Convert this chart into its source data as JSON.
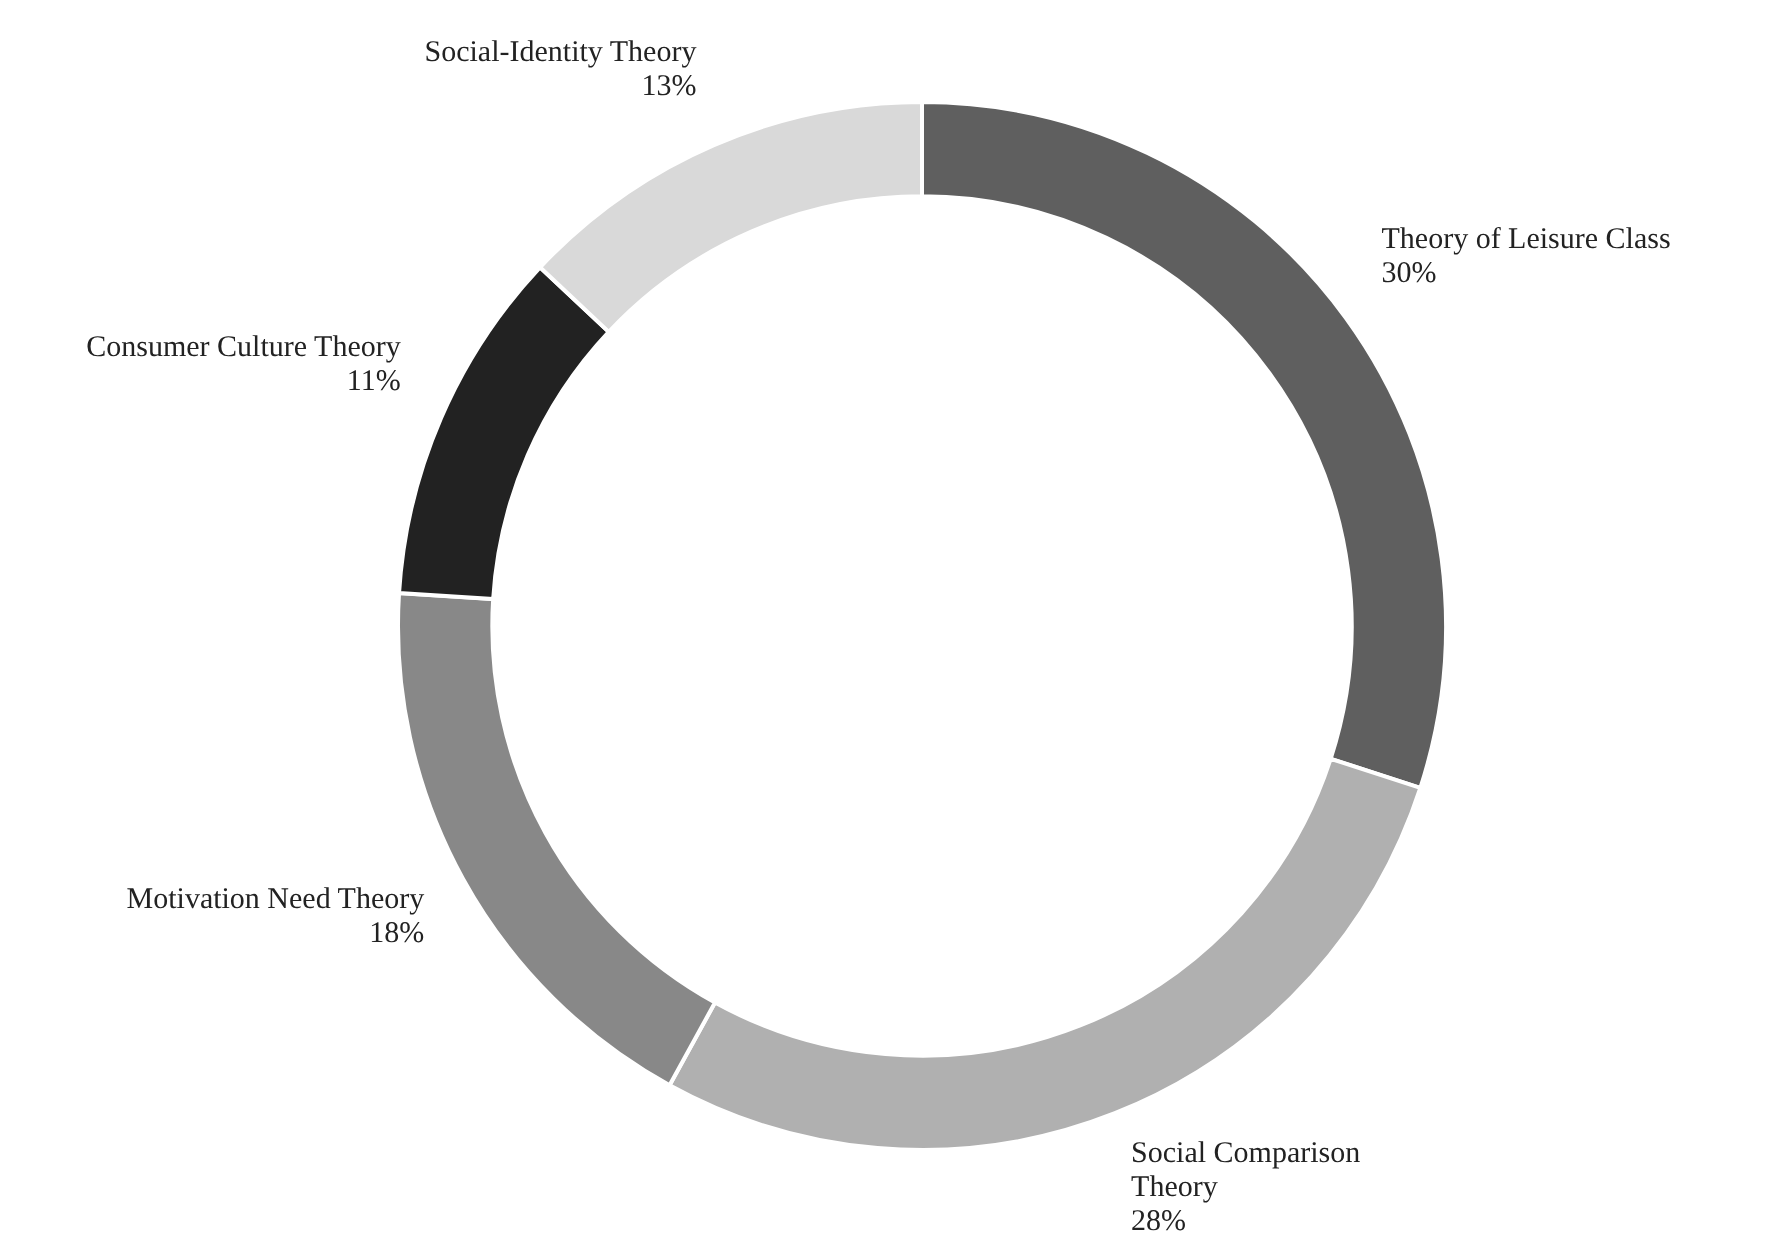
{
  "chart_data": {
    "type": "donut",
    "categories": [
      "Theory of Leisure Class",
      "Social Comparison Theory",
      "Motivation Need Theory",
      "Consumer Culture Theory",
      "Social-Identity Theory"
    ],
    "values": [
      30,
      28,
      18,
      11,
      13
    ],
    "colors": [
      "#5f5f5f",
      "#b0b0b0",
      "#888888",
      "#222222",
      "#d9d9d9"
    ],
    "value_labels": [
      "30%",
      "28%",
      "18%",
      "11%",
      "13%"
    ],
    "legend": false
  }
}
